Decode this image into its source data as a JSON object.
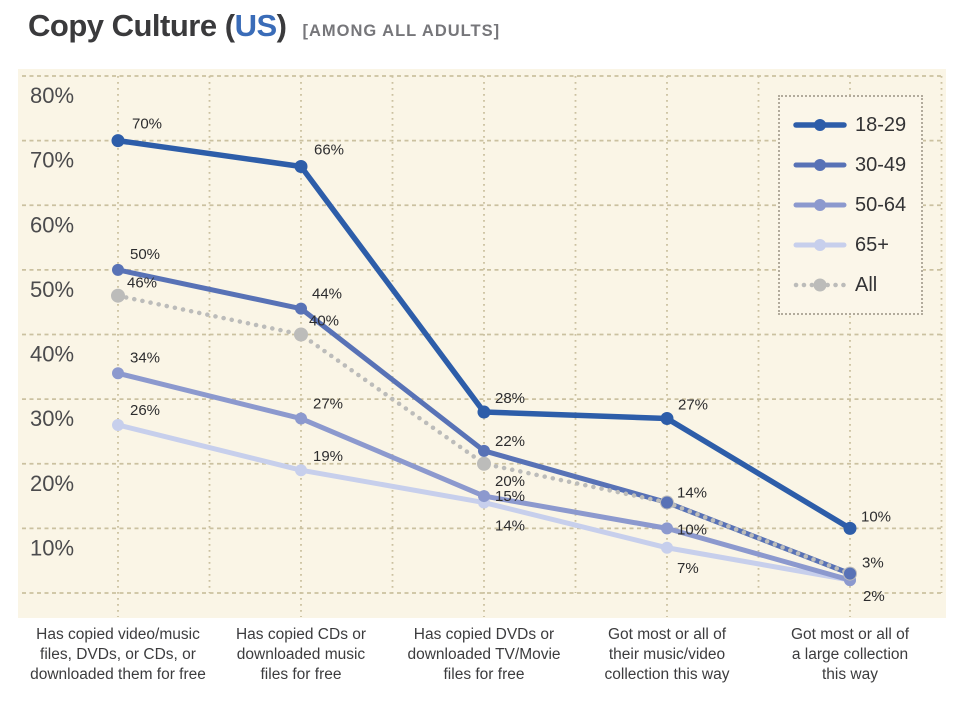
{
  "header": {
    "title_prefix": "Copy Culture (",
    "title_highlight": "US",
    "title_suffix": ")",
    "subtitle": "[AMONG ALL ADULTS]"
  },
  "chart_data": {
    "type": "line",
    "title": "Copy Culture (US) [AMONG ALL ADULTS]",
    "ylabel": "",
    "xlabel": "",
    "y_axis": {
      "min": 0,
      "max": 80,
      "step": 10,
      "tick_labels": [
        "80%",
        "70%",
        "60%",
        "50%",
        "40%",
        "30%",
        "20%",
        "10%"
      ],
      "grid": true
    },
    "categories": [
      "Has copied video/music files, DVDs, or CDs, or downloaded them for free",
      "Has copied CDs or downloaded music files for free",
      "Has copied DVDs or downloaded TV/Movie files for free",
      "Got most or all of their music/video collection this way",
      "Got most or all of a large collection this way"
    ],
    "category_label_lines": [
      [
        "Has copied video/music",
        "files, DVDs, or CDs, or",
        "downloaded them for free"
      ],
      [
        "Has copied CDs or",
        "downloaded music",
        "files for free"
      ],
      [
        "Has copied DVDs or",
        "downloaded TV/Movie",
        "files for free"
      ],
      [
        "Got most or all of",
        "their music/video",
        "collection this way"
      ],
      [
        "Got most or all of",
        "a large collection",
        "this way"
      ]
    ],
    "series": [
      {
        "name": "18-29",
        "color": "#2d5da9",
        "line_style": "solid",
        "values": [
          70,
          66,
          28,
          27,
          10
        ],
        "point_labels": [
          "70%",
          "66%",
          "28%",
          "27%",
          "10%"
        ],
        "label_offsets": [
          [
            14,
            -12
          ],
          [
            13,
            -12
          ],
          [
            11,
            -9
          ],
          [
            11,
            -9
          ],
          [
            11,
            -7
          ]
        ]
      },
      {
        "name": "30-49",
        "color": "#5872b6",
        "line_style": "solid",
        "values": [
          50,
          44,
          22,
          14,
          3
        ],
        "point_labels": [
          "50%",
          "44%",
          "22%",
          "14%",
          "3%"
        ],
        "label_offsets": [
          [
            12,
            -11
          ],
          [
            11,
            -10
          ],
          [
            11,
            -5
          ],
          [
            10,
            -5
          ],
          [
            12,
            -6
          ]
        ]
      },
      {
        "name": "50-64",
        "color": "#8c99ce",
        "line_style": "solid",
        "values": [
          34,
          27,
          15,
          10,
          2
        ],
        "point_labels": [
          "34%",
          "27%",
          "15%",
          "10%",
          "2%"
        ],
        "label_offsets": [
          [
            12,
            -11
          ],
          [
            12,
            -10
          ],
          [
            11,
            5
          ],
          [
            10,
            6
          ],
          [
            13,
            21
          ]
        ]
      },
      {
        "name": "65+",
        "color": "#c7cfec",
        "line_style": "solid",
        "values": [
          26,
          19,
          14,
          7,
          2
        ],
        "point_labels": [
          "26%",
          "19%",
          "14%",
          "7%",
          null
        ],
        "label_offsets": [
          [
            12,
            -10
          ],
          [
            12,
            -9
          ],
          [
            11,
            28
          ],
          [
            10,
            25
          ],
          null
        ]
      },
      {
        "name": "All",
        "color": "#bcbcba",
        "line_style": "dotted",
        "values": [
          46,
          40,
          20,
          14,
          3
        ],
        "point_labels": [
          "46%",
          "40%",
          "20%",
          null,
          null
        ],
        "label_offsets": [
          [
            9,
            -8
          ],
          [
            8,
            -9
          ],
          [
            11,
            22
          ],
          null,
          null
        ]
      }
    ],
    "legend": {
      "position": "top-right",
      "items": [
        "18-29",
        "30-49",
        "50-64",
        "65+",
        "All"
      ]
    },
    "colors": {
      "plot_bg": "#faf5e6",
      "grid": "#cbc1a0",
      "title": "#3a3a3c",
      "title_highlight": "#3a6cb8",
      "subtitle": "#76767a",
      "axis_label": "#4b4b4d",
      "data_label": "#2c2c2e",
      "category_label": "#3c3c3e",
      "legend_bg": "#fbf6e9",
      "legend_border": "#b2ab9c"
    }
  }
}
